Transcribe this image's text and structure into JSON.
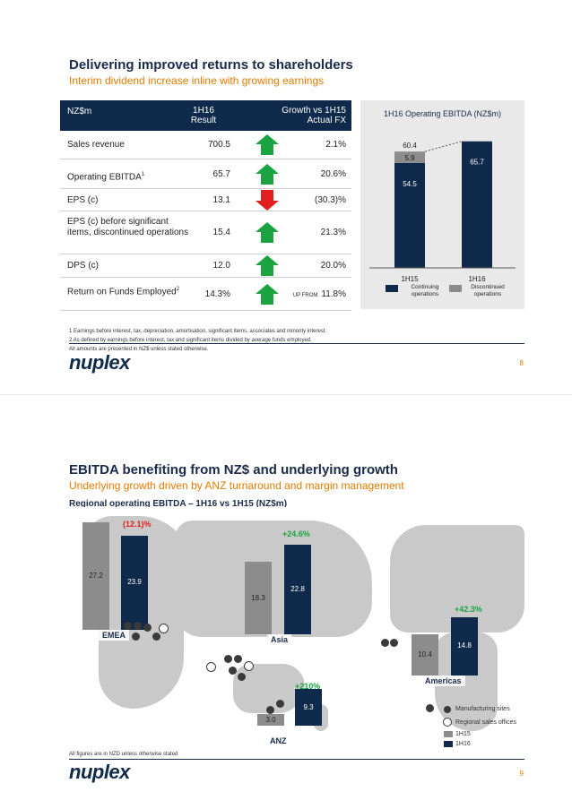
{
  "slide1": {
    "title": "Delivering improved returns to shareholders",
    "subtitle": "Interim dividend increase inline with growing earnings",
    "table": {
      "header": {
        "col1": "NZ$m",
        "col2a": "1H16",
        "col2b": "Result",
        "col4a": "Growth vs 1H15",
        "col4b": "Actual FX"
      },
      "rows": [
        {
          "label": "Sales revenue",
          "value": "700.5",
          "dir": "up",
          "growth": "2.1%"
        },
        {
          "label": "Operating EBITDA",
          "sup": "1",
          "value": "65.7",
          "dir": "up",
          "growth": "20.6%"
        },
        {
          "label": "EPS (c)",
          "value": "13.1",
          "dir": "down",
          "growth": "(30.3)%"
        },
        {
          "label": "EPS (c) before significant items, discontinued operations",
          "value": "15.4",
          "dir": "up",
          "growth": "21.3%"
        },
        {
          "label": "DPS (c)",
          "value": "12.0",
          "dir": "up",
          "growth": "20.0%"
        },
        {
          "label": "Return on Funds Employed",
          "sup": "2",
          "value": "14.3%",
          "dir": "up",
          "growth_prefix": "UP FROM",
          "growth": "11.8%"
        }
      ]
    },
    "side_chart": {
      "title": "1H16 Operating EBITDA (NZ$m)",
      "total_label": "60.4",
      "legend": {
        "continuing": "Continuing operations",
        "discontinued": "Discontinued operations"
      }
    },
    "footnotes": [
      "1   Earnings before interest, tax, depreciation, amortisation, significant items, associates and minority interest.",
      "2   As defined by earnings before interest, tax and significant items divided by average funds employed.",
      "All amounts are presented in NZ$ unless stated otherwise."
    ],
    "logo": "nuplex",
    "page": "8"
  },
  "slide2": {
    "title": "EBITDA benefiting from NZ$ and underlying growth",
    "subtitle": "Underlying growth driven by ANZ turnaround and margin management",
    "map_title": "Regional operating EBITDA – 1H16 vs 1H15 (NZ$m)",
    "regions": [
      {
        "name": "EMEA",
        "pct": "(12.1)%"
      },
      {
        "name": "Asia",
        "pct": "+24.6%"
      },
      {
        "name": "Americas",
        "pct": "+42.3%"
      },
      {
        "name": "ANZ",
        "pct": "+210%"
      }
    ],
    "legend": {
      "manufacturing": "Manufacturing sites",
      "sales": "Regional sales offices",
      "h15": "1H15",
      "h16": "1H16"
    },
    "footnote": "All figures are in NZD unless otherwise stated",
    "logo": "nuplex",
    "page": "9"
  },
  "chart_data": [
    {
      "type": "bar",
      "title": "1H16 Operating EBITDA (NZ$m)",
      "categories": [
        "1H15",
        "1H16"
      ],
      "series": [
        {
          "name": "Continuing operations",
          "values": [
            54.5,
            65.7
          ]
        },
        {
          "name": "Discontinued operations",
          "values": [
            5.9,
            0
          ]
        }
      ],
      "totals": [
        60.4,
        65.7
      ],
      "stacked": true
    },
    {
      "type": "bar",
      "title": "Regional operating EBITDA – 1H16 vs 1H15 (NZ$m)",
      "categories": [
        "EMEA",
        "Asia",
        "Americas",
        "ANZ"
      ],
      "series": [
        {
          "name": "1H15",
          "values": [
            27.2,
            18.3,
            10.4,
            3.0
          ]
        },
        {
          "name": "1H16",
          "values": [
            23.9,
            22.8,
            14.8,
            9.3
          ]
        }
      ]
    }
  ],
  "colors": {
    "navy": "#0f2a4a",
    "grey": "#8c8c8c",
    "orange": "#e07b00",
    "green": "#1aa340",
    "red": "#e0201e"
  }
}
